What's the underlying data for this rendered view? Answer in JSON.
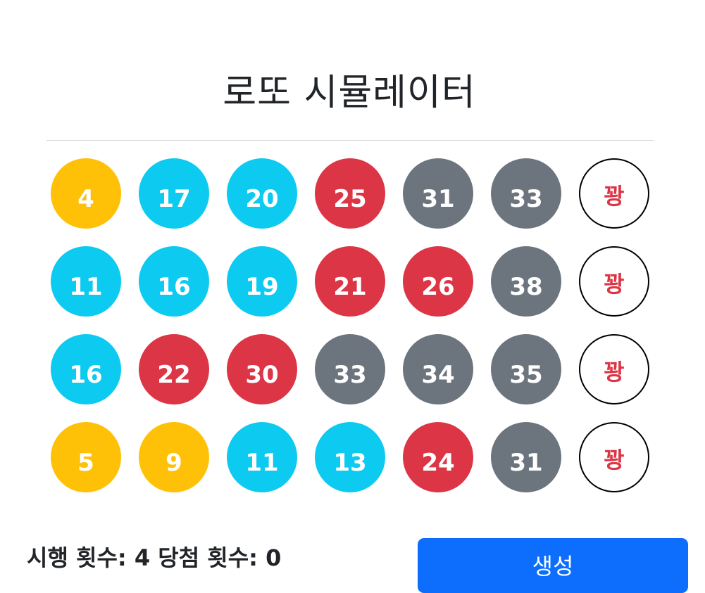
{
  "title": "로또 시뮬레이터",
  "colors": {
    "yellow": "#ffc107",
    "cyan": "#0dcaf0",
    "red": "#dc3545",
    "gray": "#6c757d",
    "button": "#0d6efd"
  },
  "rows": [
    {
      "balls": [
        {
          "number": "4",
          "color": "yellow"
        },
        {
          "number": "17",
          "color": "cyan"
        },
        {
          "number": "20",
          "color": "cyan"
        },
        {
          "number": "25",
          "color": "red"
        },
        {
          "number": "31",
          "color": "gray"
        },
        {
          "number": "33",
          "color": "gray"
        }
      ],
      "result": "꽝"
    },
    {
      "balls": [
        {
          "number": "11",
          "color": "cyan"
        },
        {
          "number": "16",
          "color": "cyan"
        },
        {
          "number": "19",
          "color": "cyan"
        },
        {
          "number": "21",
          "color": "red"
        },
        {
          "number": "26",
          "color": "red"
        },
        {
          "number": "38",
          "color": "gray"
        }
      ],
      "result": "꽝"
    },
    {
      "balls": [
        {
          "number": "16",
          "color": "cyan"
        },
        {
          "number": "22",
          "color": "red"
        },
        {
          "number": "30",
          "color": "red"
        },
        {
          "number": "33",
          "color": "gray"
        },
        {
          "number": "34",
          "color": "gray"
        },
        {
          "number": "35",
          "color": "gray"
        }
      ],
      "result": "꽝"
    },
    {
      "balls": [
        {
          "number": "5",
          "color": "yellow"
        },
        {
          "number": "9",
          "color": "yellow"
        },
        {
          "number": "11",
          "color": "cyan"
        },
        {
          "number": "13",
          "color": "cyan"
        },
        {
          "number": "24",
          "color": "red"
        },
        {
          "number": "31",
          "color": "gray"
        }
      ],
      "result": "꽝"
    }
  ],
  "stats": {
    "trials_label": "시행 횟수:",
    "trials_value": "4",
    "wins_label": "당첨 횟수:",
    "wins_value": "0"
  },
  "generate_button": "생성"
}
